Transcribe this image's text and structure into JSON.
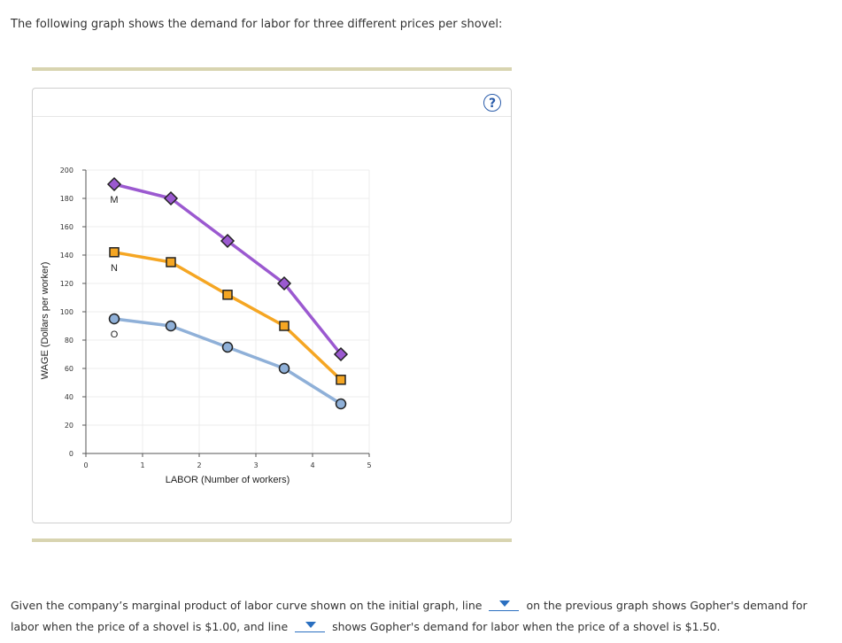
{
  "intro": "The following graph shows the demand for labor for three different prices per shovel:",
  "help_glyph": "?",
  "chart_data": {
    "type": "line",
    "xlabel": "LABOR (Number of workers)",
    "ylabel": "WAGE (Dollars per worker)",
    "xlim": [
      0,
      5
    ],
    "ylim": [
      0,
      200
    ],
    "xticks": [
      0,
      1,
      2,
      3,
      4,
      5
    ],
    "yticks": [
      0,
      20,
      40,
      60,
      80,
      100,
      120,
      140,
      160,
      180,
      200
    ],
    "grid": true,
    "x": [
      0.5,
      1.5,
      2.5,
      3.5,
      4.5
    ],
    "series": [
      {
        "name": "M",
        "marker": "diamond",
        "color": "#9b59d0",
        "markerFill": "#9b59d0",
        "values": [
          190,
          180,
          150,
          120,
          70
        ]
      },
      {
        "name": "N",
        "marker": "square",
        "color": "#f5a623",
        "markerFill": "#f5a623",
        "values": [
          142,
          135,
          112,
          90,
          52
        ]
      },
      {
        "name": "O",
        "marker": "circle",
        "color": "#8fb0d8",
        "markerFill": "#8fb0d8",
        "values": [
          95,
          90,
          75,
          60,
          35
        ]
      }
    ]
  },
  "question": {
    "part1": "Given the company’s marginal product of labor curve shown on the initial graph, line",
    "part2": "on the previous graph shows Gopher's demand for labor when the price of a shovel is $1.00, and line",
    "part3": "shows Gopher's demand for labor when the price of a shovel is $1.50."
  }
}
